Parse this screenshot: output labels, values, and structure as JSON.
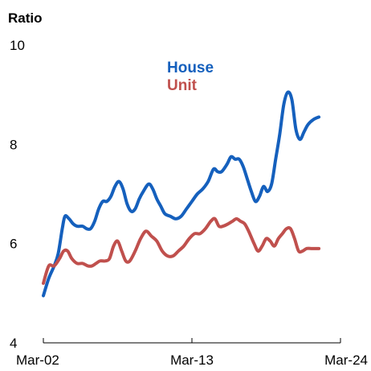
{
  "chart_data": {
    "type": "line",
    "ylabel": "Ratio",
    "ylim": [
      4,
      10
    ],
    "yticks": [
      4,
      6,
      8,
      10
    ],
    "xlim": [
      2002.0,
      2024.0
    ],
    "xticks": [
      {
        "value": 2002.0,
        "label": "Mar-02"
      },
      {
        "value": 2013.0,
        "label": "Mar-13"
      },
      {
        "value": 2024.0,
        "label": "Mar-24"
      }
    ],
    "legend_position": "top-center",
    "grid": false,
    "series": [
      {
        "name": "House",
        "color": "#1560BD",
        "points": [
          [
            2002.0,
            4.95
          ],
          [
            2002.4,
            5.3
          ],
          [
            2002.8,
            5.55
          ],
          [
            2003.1,
            5.8
          ],
          [
            2003.4,
            6.3
          ],
          [
            2003.6,
            6.55
          ],
          [
            2003.9,
            6.5
          ],
          [
            2004.2,
            6.4
          ],
          [
            2004.5,
            6.35
          ],
          [
            2004.9,
            6.35
          ],
          [
            2005.2,
            6.3
          ],
          [
            2005.5,
            6.3
          ],
          [
            2005.8,
            6.45
          ],
          [
            2006.1,
            6.7
          ],
          [
            2006.4,
            6.85
          ],
          [
            2006.7,
            6.85
          ],
          [
            2007.0,
            6.95
          ],
          [
            2007.3,
            7.15
          ],
          [
            2007.6,
            7.25
          ],
          [
            2007.9,
            7.1
          ],
          [
            2008.2,
            6.8
          ],
          [
            2008.5,
            6.65
          ],
          [
            2008.8,
            6.7
          ],
          [
            2009.1,
            6.9
          ],
          [
            2009.4,
            7.05
          ],
          [
            2009.8,
            7.2
          ],
          [
            2010.1,
            7.1
          ],
          [
            2010.4,
            6.9
          ],
          [
            2010.7,
            6.75
          ],
          [
            2011.0,
            6.6
          ],
          [
            2011.4,
            6.55
          ],
          [
            2011.8,
            6.5
          ],
          [
            2012.2,
            6.55
          ],
          [
            2012.6,
            6.7
          ],
          [
            2013.0,
            6.85
          ],
          [
            2013.4,
            7.0
          ],
          [
            2013.8,
            7.1
          ],
          [
            2014.2,
            7.25
          ],
          [
            2014.6,
            7.5
          ],
          [
            2014.9,
            7.45
          ],
          [
            2015.2,
            7.45
          ],
          [
            2015.6,
            7.6
          ],
          [
            2015.9,
            7.75
          ],
          [
            2016.2,
            7.7
          ],
          [
            2016.5,
            7.7
          ],
          [
            2016.8,
            7.55
          ],
          [
            2017.1,
            7.3
          ],
          [
            2017.4,
            7.05
          ],
          [
            2017.7,
            6.85
          ],
          [
            2018.0,
            6.95
          ],
          [
            2018.3,
            7.15
          ],
          [
            2018.6,
            7.05
          ],
          [
            2018.9,
            7.2
          ],
          [
            2019.2,
            7.7
          ],
          [
            2019.5,
            8.2
          ],
          [
            2019.8,
            8.8
          ],
          [
            2020.1,
            9.05
          ],
          [
            2020.4,
            8.9
          ],
          [
            2020.7,
            8.3
          ],
          [
            2021.0,
            8.1
          ],
          [
            2021.3,
            8.25
          ],
          [
            2021.6,
            8.4
          ],
          [
            2022.0,
            8.5
          ],
          [
            2022.4,
            8.55
          ]
        ]
      },
      {
        "name": "Unit",
        "color": "#C0504D",
        "points": [
          [
            2002.0,
            5.2
          ],
          [
            2002.4,
            5.55
          ],
          [
            2002.8,
            5.55
          ],
          [
            2003.2,
            5.7
          ],
          [
            2003.5,
            5.85
          ],
          [
            2003.8,
            5.85
          ],
          [
            2004.1,
            5.7
          ],
          [
            2004.5,
            5.6
          ],
          [
            2004.9,
            5.6
          ],
          [
            2005.3,
            5.55
          ],
          [
            2005.6,
            5.55
          ],
          [
            2005.9,
            5.6
          ],
          [
            2006.2,
            5.65
          ],
          [
            2006.6,
            5.65
          ],
          [
            2006.9,
            5.7
          ],
          [
            2007.2,
            5.95
          ],
          [
            2007.5,
            6.05
          ],
          [
            2007.8,
            5.85
          ],
          [
            2008.1,
            5.65
          ],
          [
            2008.4,
            5.65
          ],
          [
            2008.8,
            5.85
          ],
          [
            2009.2,
            6.1
          ],
          [
            2009.6,
            6.25
          ],
          [
            2010.0,
            6.15
          ],
          [
            2010.4,
            6.05
          ],
          [
            2010.8,
            5.85
          ],
          [
            2011.2,
            5.75
          ],
          [
            2011.6,
            5.75
          ],
          [
            2012.0,
            5.85
          ],
          [
            2012.4,
            5.95
          ],
          [
            2012.8,
            6.1
          ],
          [
            2013.2,
            6.2
          ],
          [
            2013.6,
            6.2
          ],
          [
            2014.0,
            6.3
          ],
          [
            2014.4,
            6.45
          ],
          [
            2014.7,
            6.5
          ],
          [
            2015.0,
            6.35
          ],
          [
            2015.3,
            6.35
          ],
          [
            2015.7,
            6.4
          ],
          [
            2016.0,
            6.45
          ],
          [
            2016.3,
            6.5
          ],
          [
            2016.6,
            6.45
          ],
          [
            2016.9,
            6.4
          ],
          [
            2017.2,
            6.25
          ],
          [
            2017.6,
            6.0
          ],
          [
            2017.9,
            5.85
          ],
          [
            2018.2,
            5.95
          ],
          [
            2018.5,
            6.1
          ],
          [
            2018.8,
            6.05
          ],
          [
            2019.1,
            5.95
          ],
          [
            2019.4,
            6.1
          ],
          [
            2019.7,
            6.2
          ],
          [
            2020.0,
            6.3
          ],
          [
            2020.3,
            6.3
          ],
          [
            2020.6,
            6.1
          ],
          [
            2020.9,
            5.85
          ],
          [
            2021.2,
            5.85
          ],
          [
            2021.5,
            5.9
          ],
          [
            2021.9,
            5.9
          ],
          [
            2022.4,
            5.9
          ]
        ]
      }
    ]
  }
}
